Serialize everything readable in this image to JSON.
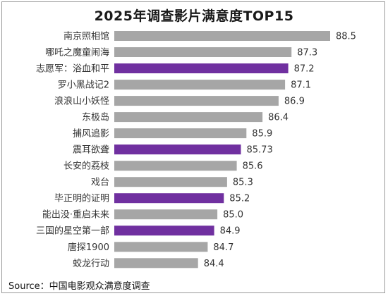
{
  "chart_data": {
    "type": "bar",
    "orientation": "horizontal",
    "title": "2025年调查影片满意度TOP15",
    "categories": [
      "南京照相馆",
      "哪吒之魔童闹海",
      "志愿军：浴血和平",
      "罗小黑战记2",
      "浪浪山小妖怪",
      "东极岛",
      "捕风追影",
      "震耳欲聋",
      "长安的荔枝",
      "戏台",
      "毕正明的证明",
      "能出没·重启未来",
      "三国的星空第一部",
      "唐探1900",
      "蛟龙行动"
    ],
    "values": [
      88.5,
      87.3,
      87.2,
      87.1,
      86.9,
      86.4,
      85.9,
      85.73,
      85.6,
      85.3,
      85.2,
      85.0,
      84.9,
      84.7,
      84.4
    ],
    "value_labels": [
      "88.5",
      "87.3",
      "87.2",
      "87.1",
      "86.9",
      "86.4",
      "85.9",
      "85.73",
      "85.6",
      "85.3",
      "85.2",
      "85.0",
      "84.9",
      "84.7",
      "84.4"
    ],
    "highlighted": [
      false,
      false,
      true,
      false,
      false,
      false,
      false,
      true,
      false,
      false,
      true,
      false,
      true,
      false,
      false
    ],
    "colors": {
      "default": "#a6a6a6",
      "highlight": "#7030a0"
    },
    "xlim": [
      81.8,
      88.5
    ],
    "grid": false,
    "legend": "none"
  },
  "source": "Source：中国电影观众满意度调查"
}
